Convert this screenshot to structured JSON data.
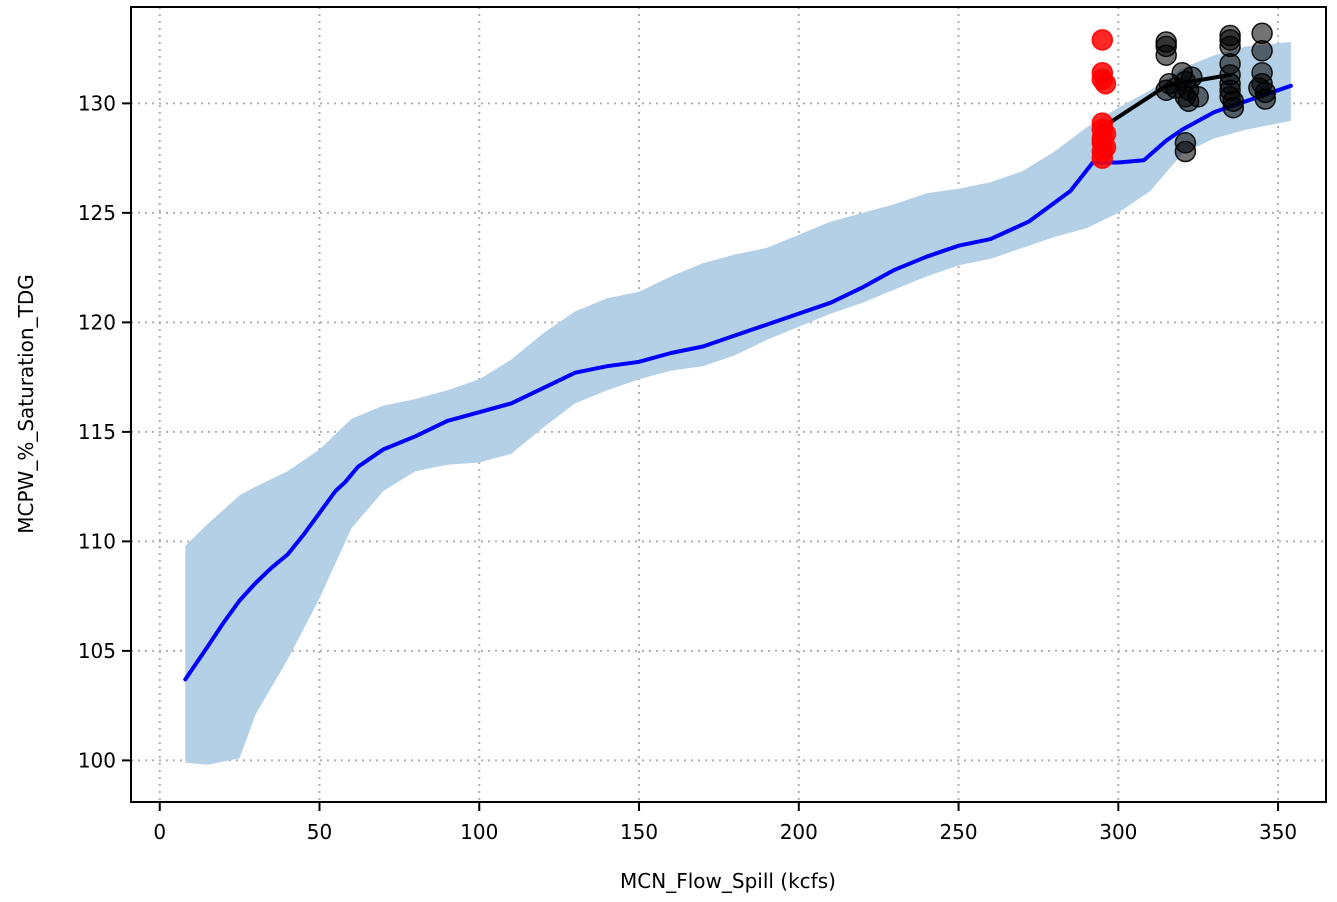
{
  "chart_data": {
    "type": "line",
    "title": "",
    "xlabel": "MCN_Flow_Spill (kcfs)",
    "ylabel": "MCPW_%_Saturation_TDG",
    "xlim": [
      -9,
      365
    ],
    "ylim": [
      98.1,
      134.4
    ],
    "x_ticks": [
      0,
      50,
      100,
      150,
      200,
      250,
      300,
      350
    ],
    "y_ticks": [
      100,
      105,
      110,
      115,
      120,
      125,
      130
    ],
    "x_tick_labels": [
      "0",
      "50",
      "100",
      "150",
      "200",
      "250",
      "300",
      "350"
    ],
    "y_tick_labels": [
      "100",
      "105",
      "110",
      "115",
      "120",
      "125",
      "130"
    ],
    "grid": true,
    "colors": {
      "band": "#b4d0e6",
      "mean_line": "#0000ff",
      "recent_line": "#000000",
      "red_points": "#ff0000",
      "black_points": "#000000"
    },
    "confidence_band": {
      "x": [
        8,
        15,
        25,
        30,
        40,
        50,
        60,
        70,
        80,
        90,
        100,
        110,
        120,
        130,
        140,
        150,
        160,
        170,
        180,
        190,
        200,
        210,
        220,
        230,
        240,
        250,
        260,
        270,
        280,
        290,
        300,
        310,
        320,
        330,
        340,
        354
      ],
      "upper": [
        109.8,
        110.8,
        112.1,
        112.5,
        113.2,
        114.2,
        115.6,
        116.2,
        116.5,
        116.9,
        117.4,
        118.3,
        119.5,
        120.5,
        121.1,
        121.4,
        122.1,
        122.7,
        123.1,
        123.4,
        124.0,
        124.6,
        125.0,
        125.4,
        125.9,
        126.1,
        126.4,
        126.9,
        127.8,
        128.9,
        129.8,
        130.6,
        131.6,
        132.2,
        132.6,
        132.8
      ],
      "lower": [
        99.9,
        99.8,
        100.1,
        102.1,
        104.6,
        107.4,
        110.6,
        112.3,
        113.2,
        113.5,
        113.6,
        114.0,
        115.2,
        116.3,
        116.9,
        117.4,
        117.8,
        118.0,
        118.5,
        119.2,
        119.8,
        120.4,
        120.9,
        121.5,
        122.1,
        122.6,
        122.9,
        123.4,
        123.9,
        124.3,
        125.0,
        126.0,
        127.7,
        128.4,
        128.8,
        129.2
      ]
    },
    "series": [
      {
        "x": [
          8,
          15,
          20,
          25,
          30,
          35,
          40,
          45,
          50,
          55,
          58,
          62,
          65,
          70,
          80,
          90,
          100,
          110,
          120,
          130,
          140,
          150,
          160,
          170,
          180,
          190,
          200,
          210,
          220,
          230,
          240,
          250,
          260,
          272,
          285,
          292,
          300,
          308,
          315,
          320,
          330,
          340,
          354
        ],
        "y": [
          103.7,
          105.2,
          106.3,
          107.3,
          108.1,
          108.8,
          109.4,
          110.3,
          111.3,
          112.3,
          112.7,
          113.4,
          113.7,
          114.2,
          114.8,
          115.5,
          115.9,
          116.3,
          117.0,
          117.7,
          118.0,
          118.2,
          118.6,
          118.9,
          119.4,
          119.9,
          120.4,
          120.9,
          121.6,
          122.4,
          123.0,
          123.5,
          123.8,
          124.6,
          126.0,
          127.3,
          127.3,
          127.4,
          128.3,
          128.8,
          129.6,
          130.1,
          130.8
        ]
      },
      {
        "x": [
          295,
          315,
          335
        ],
        "y": [
          128.9,
          130.8,
          131.3
        ]
      }
    ],
    "points": [
      {
        "group": "red",
        "x": 295,
        "y": 132.9
      },
      {
        "group": "red",
        "x": 295,
        "y": 131.4
      },
      {
        "group": "red",
        "x": 295,
        "y": 131.1
      },
      {
        "group": "red",
        "x": 296,
        "y": 130.9
      },
      {
        "group": "red",
        "x": 295,
        "y": 129.1
      },
      {
        "group": "red",
        "x": 295,
        "y": 128.8
      },
      {
        "group": "red",
        "x": 296,
        "y": 128.6
      },
      {
        "group": "red",
        "x": 295,
        "y": 128.4
      },
      {
        "group": "red",
        "x": 295,
        "y": 128.2
      },
      {
        "group": "red",
        "x": 296,
        "y": 128.0
      },
      {
        "group": "red",
        "x": 295,
        "y": 127.8
      },
      {
        "group": "red",
        "x": 295,
        "y": 127.5
      },
      {
        "group": "black",
        "x": 315,
        "y": 132.8
      },
      {
        "group": "black",
        "x": 315,
        "y": 132.6
      },
      {
        "group": "black",
        "x": 315,
        "y": 132.2
      },
      {
        "group": "black",
        "x": 315,
        "y": 130.6
      },
      {
        "group": "black",
        "x": 316,
        "y": 130.9
      },
      {
        "group": "black",
        "x": 318,
        "y": 130.7
      },
      {
        "group": "black",
        "x": 320,
        "y": 131.4
      },
      {
        "group": "black",
        "x": 321,
        "y": 130.3
      },
      {
        "group": "black",
        "x": 321,
        "y": 131.0
      },
      {
        "group": "black",
        "x": 322,
        "y": 130.1
      },
      {
        "group": "black",
        "x": 322,
        "y": 130.6
      },
      {
        "group": "black",
        "x": 323,
        "y": 131.2
      },
      {
        "group": "black",
        "x": 325,
        "y": 130.3
      },
      {
        "group": "black",
        "x": 321,
        "y": 128.2
      },
      {
        "group": "black",
        "x": 321,
        "y": 127.8
      },
      {
        "group": "black",
        "x": 335,
        "y": 133.1
      },
      {
        "group": "black",
        "x": 335,
        "y": 132.9
      },
      {
        "group": "black",
        "x": 335,
        "y": 132.6
      },
      {
        "group": "black",
        "x": 335,
        "y": 131.8
      },
      {
        "group": "black",
        "x": 335,
        "y": 131.3
      },
      {
        "group": "black",
        "x": 335,
        "y": 130.9
      },
      {
        "group": "black",
        "x": 335,
        "y": 130.6
      },
      {
        "group": "black",
        "x": 335,
        "y": 130.3
      },
      {
        "group": "black",
        "x": 336,
        "y": 130.1
      },
      {
        "group": "black",
        "x": 336,
        "y": 129.8
      },
      {
        "group": "black",
        "x": 345,
        "y": 133.2
      },
      {
        "group": "black",
        "x": 345,
        "y": 132.4
      },
      {
        "group": "black",
        "x": 345,
        "y": 131.4
      },
      {
        "group": "black",
        "x": 345,
        "y": 130.9
      },
      {
        "group": "black",
        "x": 346,
        "y": 130.5
      },
      {
        "group": "black",
        "x": 346,
        "y": 130.2
      },
      {
        "group": "black",
        "x": 344,
        "y": 130.7
      }
    ]
  }
}
